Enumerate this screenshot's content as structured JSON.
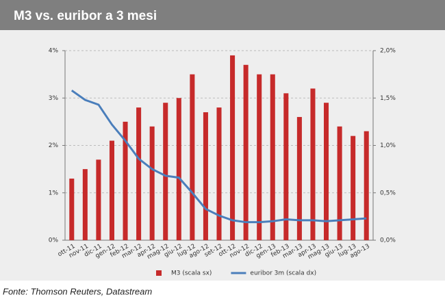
{
  "chart_data": {
    "type": "bar-line",
    "title": "M3 vs. euribor a  3 mesi",
    "source": "Fonte:  Thomson  Reuters,  Datastream",
    "categories": [
      "ott-11",
      "nov-11",
      "dic-11",
      "gen-12",
      "feb-12",
      "mar-12",
      "apr-12",
      "mag-12",
      "giu-12",
      "lug-12",
      "ago-12",
      "set-12",
      "ott-12",
      "nov-12",
      "dic-12",
      "gen-13",
      "feb-13",
      "mar-13",
      "apr-13",
      "mag-13",
      "giu-13",
      "lug-13",
      "ago-13"
    ],
    "series": [
      {
        "name": "M3  (scala sx)",
        "type": "bar",
        "color": "#c62a2a",
        "values": [
          1.3,
          1.5,
          1.7,
          2.1,
          2.5,
          2.8,
          2.4,
          2.9,
          3.0,
          3.5,
          2.7,
          2.8,
          3.9,
          3.7,
          3.5,
          3.5,
          3.1,
          2.6,
          3.2,
          2.9,
          2.4,
          2.2,
          2.3
        ]
      },
      {
        "name": "euribor 3m  (scala dx)",
        "type": "line",
        "axis": "y2",
        "color": "#4a7ebb",
        "values": [
          1.58,
          1.48,
          1.43,
          1.22,
          1.05,
          0.86,
          0.75,
          0.68,
          0.66,
          0.5,
          0.33,
          0.26,
          0.21,
          0.19,
          0.19,
          0.2,
          0.22,
          0.21,
          0.21,
          0.2,
          0.21,
          0.22,
          0.23
        ]
      }
    ],
    "ylim": [
      0,
      4
    ],
    "yticks": [
      {
        "value": 0,
        "label": "0%"
      },
      {
        "value": 1,
        "label": "1%"
      },
      {
        "value": 2,
        "label": "2%"
      },
      {
        "value": 3,
        "label": "3%"
      },
      {
        "value": 4,
        "label": "4%"
      }
    ],
    "y2lim": [
      0,
      2
    ],
    "y2ticks": [
      {
        "value": 0,
        "label": "0,0%"
      },
      {
        "value": 0.5,
        "label": "0,5%"
      },
      {
        "value": 1,
        "label": "1,0%"
      },
      {
        "value": 1.5,
        "label": "1,5%"
      },
      {
        "value": 2,
        "label": "2,0%"
      }
    ],
    "grid": true,
    "legend": "bottom"
  }
}
